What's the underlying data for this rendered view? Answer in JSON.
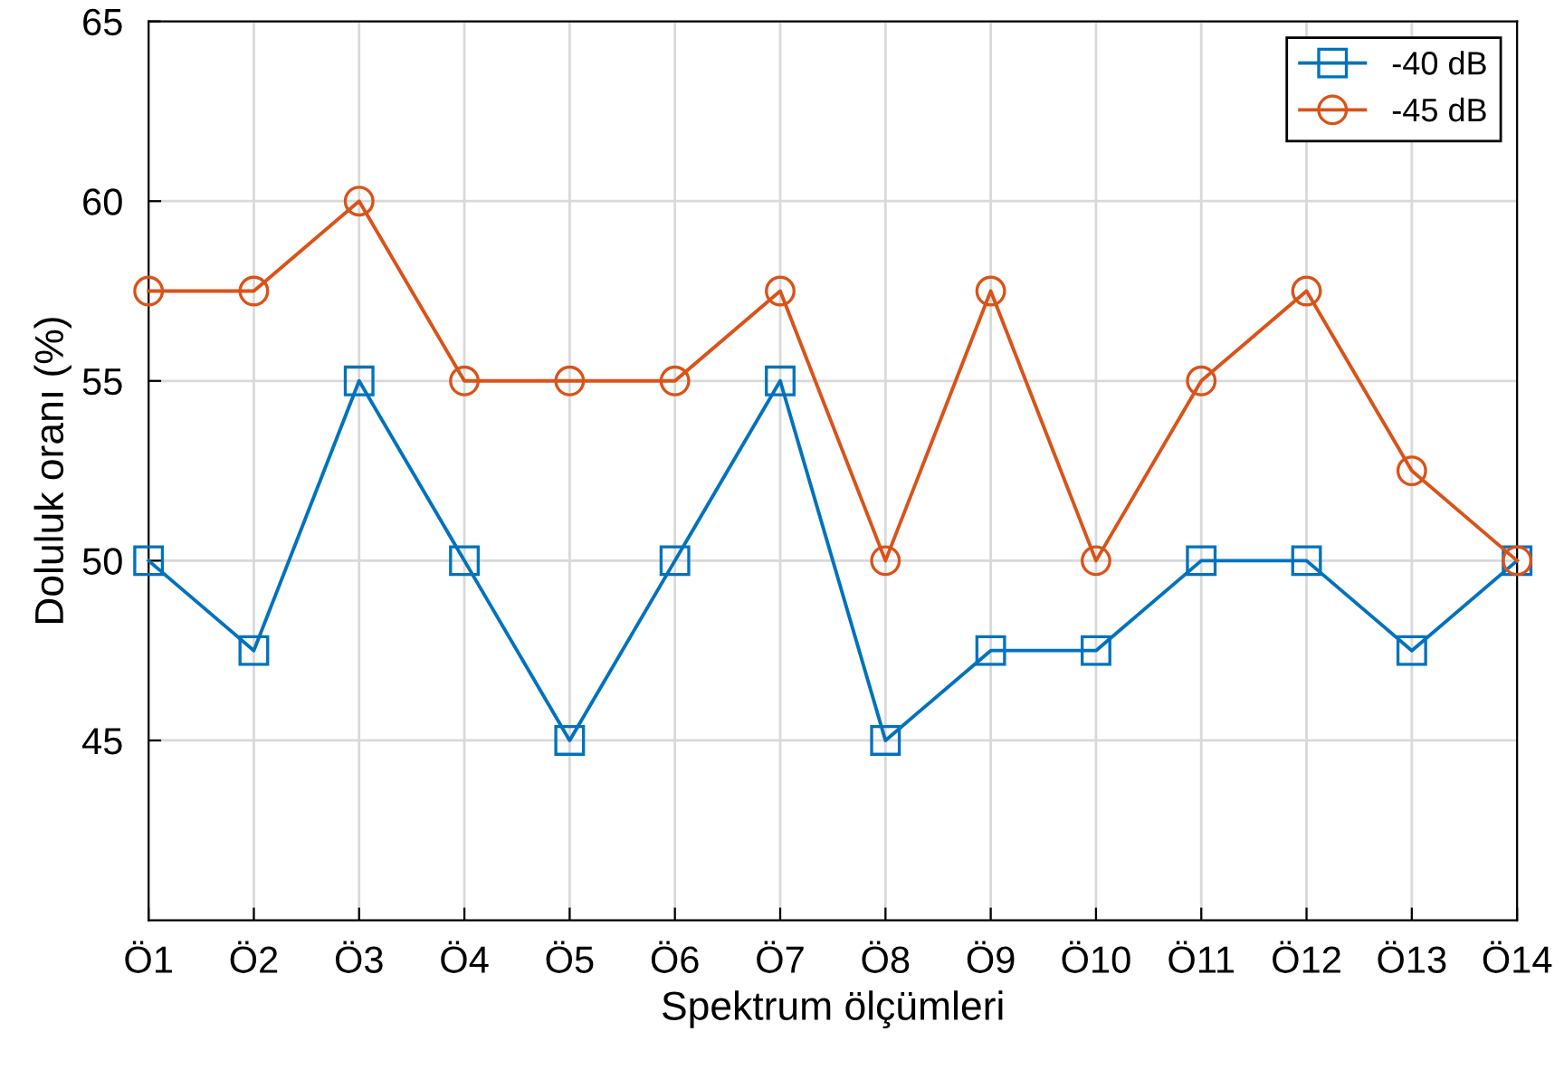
{
  "chart_data": {
    "type": "line",
    "xlabel": "Spektrum ölçümleri",
    "ylabel": "Doluluk oranı (%)",
    "categories": [
      "Ö1",
      "Ö2",
      "Ö3",
      "Ö4",
      "Ö5",
      "Ö6",
      "Ö7",
      "Ö8",
      "Ö9",
      "Ö10",
      "Ö11",
      "Ö12",
      "Ö13",
      "Ö14"
    ],
    "series": [
      {
        "name": "-40 dB",
        "color": "#0072bd",
        "marker": "square",
        "values": [
          50,
          47.5,
          55,
          50,
          45,
          50,
          55,
          45,
          47.5,
          47.5,
          50,
          50,
          47.5,
          50
        ]
      },
      {
        "name": "-45 dB",
        "color": "#d95319",
        "marker": "circle",
        "values": [
          57.5,
          57.5,
          60,
          55,
          55,
          55,
          57.5,
          50,
          57.5,
          50,
          55,
          57.5,
          52.5,
          50
        ]
      }
    ],
    "ylim": [
      40,
      65
    ],
    "yticks": [
      45,
      50,
      55,
      60,
      65
    ],
    "grid": true,
    "legend": "top right",
    "line_style": "solid"
  }
}
